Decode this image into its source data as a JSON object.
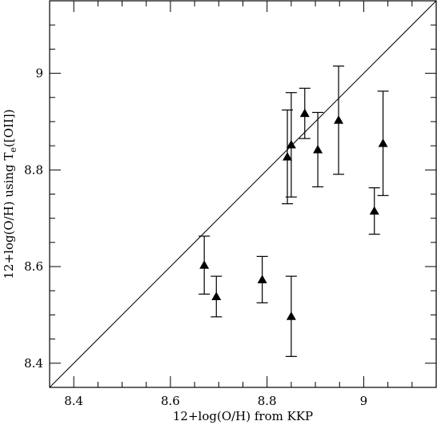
{
  "chart_data": {
    "type": "scatter",
    "xlabel": "12+log(O/H) from KKP",
    "ylabel_parts": {
      "before": "12+log(O/H)  using  T",
      "subscript": "e",
      "after": "([OII])"
    },
    "xlim": [
      8.35,
      9.15
    ],
    "ylim": [
      8.35,
      9.15
    ],
    "x_ticks": [
      8.4,
      8.6,
      8.8,
      9.0
    ],
    "x_tick_labels": [
      "8.4",
      "8.6",
      "8.8",
      "9"
    ],
    "y_ticks": [
      8.4,
      8.6,
      8.8,
      9.0
    ],
    "y_tick_labels": [
      "8.4",
      "8.6",
      "8.8",
      "9"
    ],
    "minor_step": 0.05,
    "reference_line": "y = x",
    "marker": "filled-triangle",
    "points": [
      {
        "x": 8.67,
        "y": 8.603,
        "err": 0.06
      },
      {
        "x": 8.695,
        "y": 8.538,
        "err": 0.042
      },
      {
        "x": 8.79,
        "y": 8.573,
        "err": 0.048
      },
      {
        "x": 8.842,
        "y": 8.827,
        "err": 0.097
      },
      {
        "x": 8.85,
        "y": 8.852,
        "err": 0.108
      },
      {
        "x": 8.85,
        "y": 8.497,
        "err": 0.083
      },
      {
        "x": 8.878,
        "y": 8.917,
        "err": 0.052
      },
      {
        "x": 8.905,
        "y": 8.842,
        "err": 0.077
      },
      {
        "x": 8.948,
        "y": 8.903,
        "err": 0.112
      },
      {
        "x": 9.022,
        "y": 8.715,
        "err": 0.048
      },
      {
        "x": 9.04,
        "y": 8.855,
        "err": 0.108
      }
    ]
  }
}
